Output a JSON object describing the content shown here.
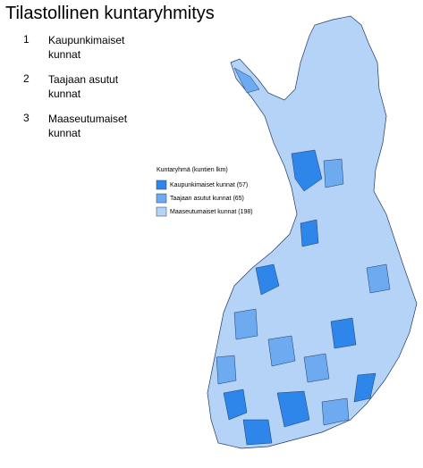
{
  "title": "Tilastollinen kuntaryhmitys",
  "items": [
    {
      "number": "1",
      "label": "Kaupunkimaiset kunnat"
    },
    {
      "number": "2",
      "label": "Taajaan asutut kunnat"
    },
    {
      "number": "3",
      "label": "Maaseutumaiset kunnat"
    }
  ],
  "legend": {
    "title": "Kuntaryhmä (kuntien lkm)",
    "entries": [
      {
        "label": "Kaupunkimaiset kunnat (57)",
        "color": "#2f86ea"
      },
      {
        "label": "Taajaan asutut kunnat (65)",
        "color": "#6eaaf0"
      },
      {
        "label": "Maaseutumaiset kunnat (198)",
        "color": "#b4d3f6"
      }
    ]
  }
}
